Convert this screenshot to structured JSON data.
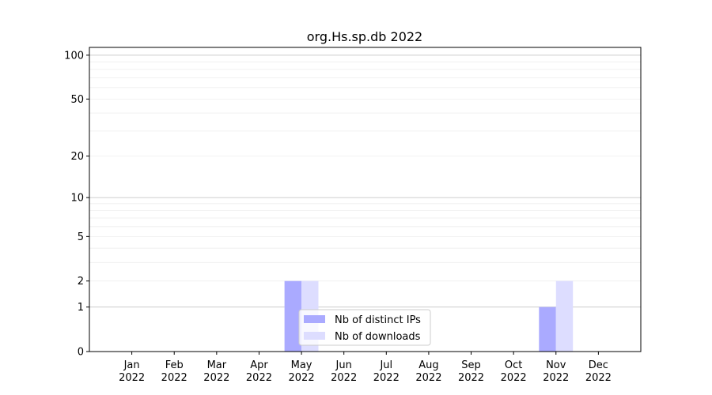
{
  "chart_data": {
    "type": "bar",
    "title": "org.Hs.sp.db 2022",
    "xlabel": "",
    "ylabel": "",
    "categories": [
      "Jan\n2022",
      "Feb\n2022",
      "Mar\n2022",
      "Apr\n2022",
      "May\n2022",
      "Jun\n2022",
      "Jul\n2022",
      "Aug\n2022",
      "Sep\n2022",
      "Oct\n2022",
      "Nov\n2022",
      "Dec\n2022"
    ],
    "series": [
      {
        "name": "Nb of distinct IPs",
        "color": "#aaaaff",
        "values": [
          0,
          0,
          0,
          0,
          2,
          0,
          0,
          0,
          0,
          0,
          1,
          0
        ]
      },
      {
        "name": "Nb of downloads",
        "color": "#ddddff",
        "values": [
          0,
          0,
          0,
          0,
          2,
          0,
          0,
          0,
          0,
          0,
          2,
          0
        ]
      }
    ],
    "y_scale": "log(1+y)",
    "yticks": [
      0,
      1,
      2,
      5,
      10,
      20,
      50,
      100
    ],
    "ylim": [
      0,
      113
    ],
    "grid": true,
    "legend": "lower-center"
  }
}
